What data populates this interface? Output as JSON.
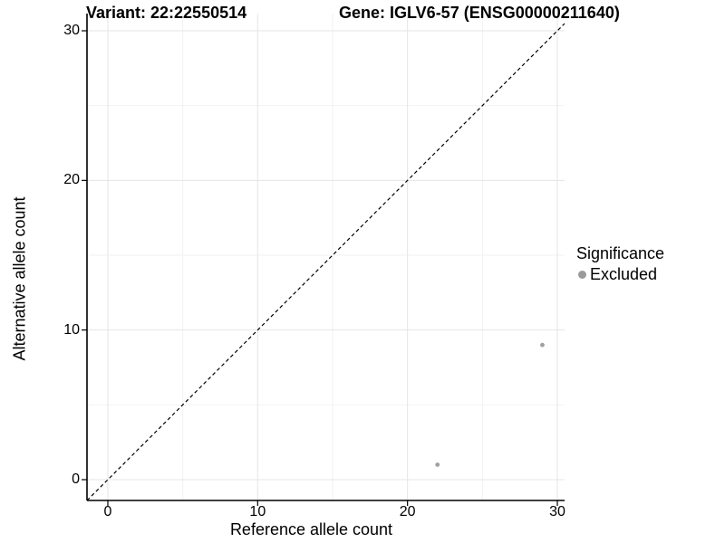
{
  "header": {
    "variant_title": "Variant: 22:22550514",
    "gene_title": "Gene: IGLV6-57 (ENSG00000211640)"
  },
  "chart_data": {
    "type": "scatter",
    "title": "Variant: 22:22550514  |  Gene: IGLV6-57 (ENSG00000211640)",
    "xlabel": "Reference allele count",
    "ylabel": "Alternative allele count",
    "xlim": [
      0,
      30
    ],
    "ylim": [
      0,
      30
    ],
    "x_ticks": [
      0,
      10,
      20,
      30
    ],
    "y_ticks": [
      0,
      10,
      20,
      30
    ],
    "x_minor_ticks": [
      5,
      15,
      25
    ],
    "y_minor_ticks": [
      5,
      15,
      25
    ],
    "grid": true,
    "diagonal_line": {
      "style": "dashed",
      "from": [
        0,
        0
      ],
      "to": [
        30,
        30
      ]
    },
    "series": [
      {
        "name": "Excluded",
        "color": "#a0a0a0",
        "points": [
          [
            22,
            1
          ],
          [
            29,
            9
          ]
        ]
      }
    ],
    "legend": {
      "title": "Significance",
      "position": "right",
      "items": [
        {
          "label": "Excluded",
          "color": "#9a9a9a"
        }
      ]
    }
  },
  "colors": {
    "background": "#ffffff",
    "grid_major": "#e5e5e5",
    "grid_minor": "#f2f2f2",
    "axis_line": "#000000",
    "tick_mark": "#000000",
    "diagonal": "#000000",
    "point": "#a0a0a0"
  }
}
